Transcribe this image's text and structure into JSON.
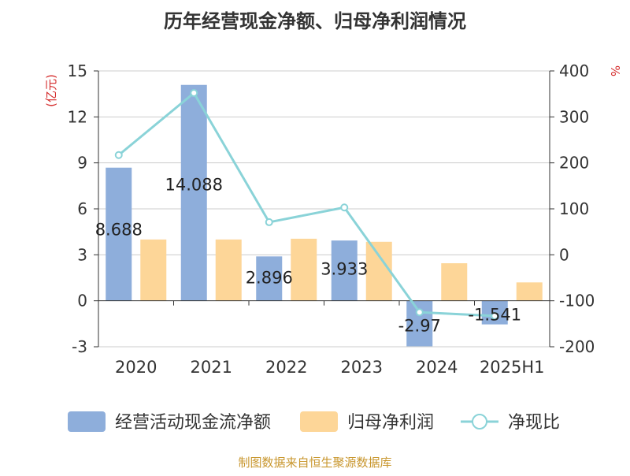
{
  "chart_data": {
    "type": "bar",
    "title": "历年经营现金净额、归母净利润情况",
    "categories": [
      "2020",
      "2021",
      "2022",
      "2023",
      "2024",
      "2025H1"
    ],
    "left_axis": {
      "unit": "(亿元)",
      "ylim": [
        -3,
        15
      ],
      "ticks": [
        -3,
        0,
        3,
        6,
        9,
        12,
        15
      ]
    },
    "right_axis": {
      "unit": "%",
      "ylim": [
        -200,
        400
      ],
      "ticks": [
        -200,
        -100,
        0,
        100,
        200,
        300,
        400
      ]
    },
    "series": [
      {
        "name": "经营活动现金流净额",
        "type": "bar",
        "axis": "left",
        "color": "#8eaedb",
        "values": [
          8.688,
          14.088,
          2.896,
          3.933,
          -2.97,
          -1.541
        ],
        "labels": [
          "8.688",
          "14.088",
          "2.896",
          "3.933",
          "-2.97",
          "-1.541"
        ]
      },
      {
        "name": "归母净利润",
        "type": "bar",
        "axis": "left",
        "color": "#fdd698",
        "values": [
          4.0,
          4.0,
          4.05,
          3.85,
          2.45,
          1.2
        ]
      },
      {
        "name": "净现比",
        "type": "line",
        "axis": "right",
        "color": "#8ad3d8",
        "values": [
          217,
          352,
          71,
          103,
          -125,
          -133
        ]
      }
    ],
    "grid": true,
    "legend_position": "bottom"
  },
  "source_text": "制图数据来自恒生聚源数据库"
}
